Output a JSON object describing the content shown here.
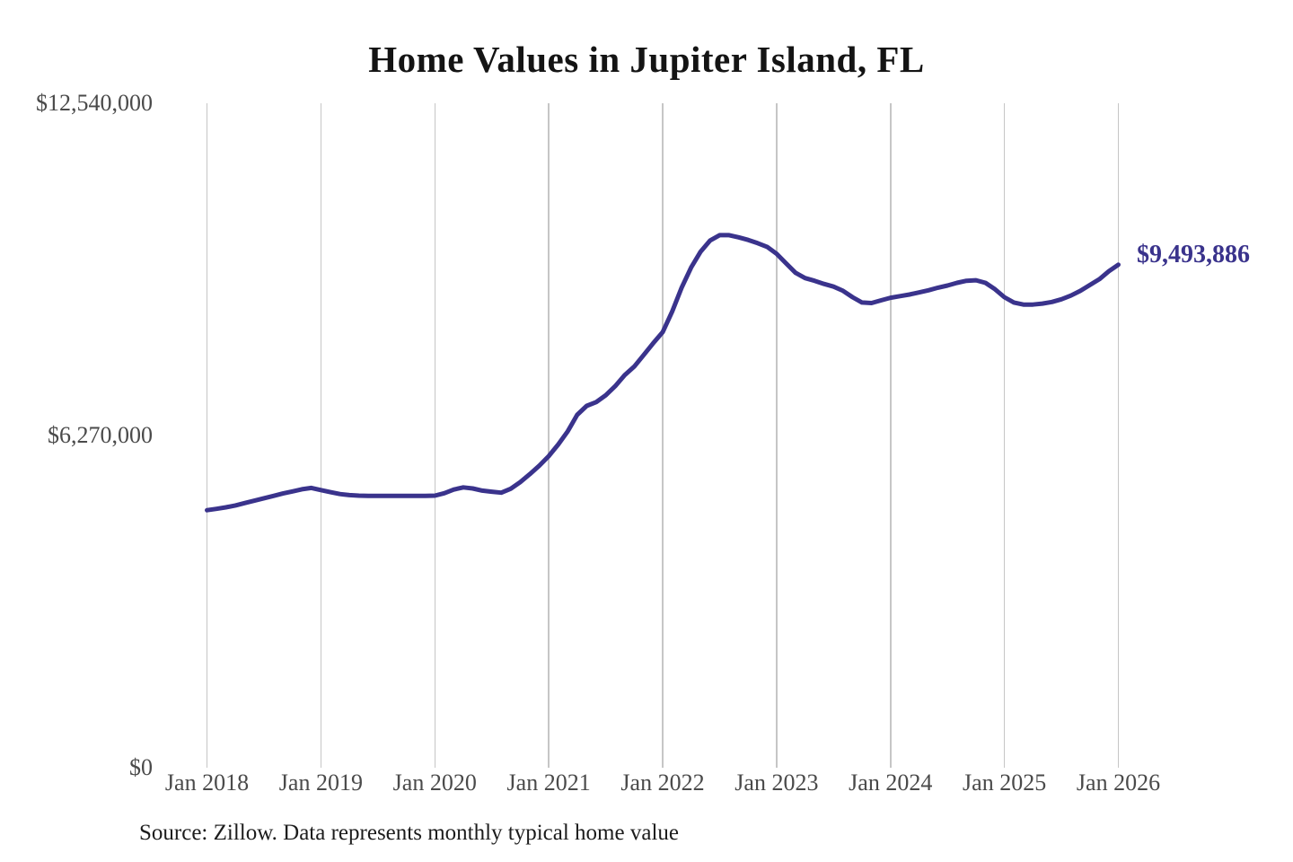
{
  "page": {
    "title": "Home Values in Jupiter Island, FL",
    "source_note": "Source: Zillow. Data represents monthly typical home value"
  },
  "colors": {
    "line": "#3a338c",
    "annotation": "#3a338c",
    "gridline": "#c6c6c6",
    "axis_label": "#4a4a4a",
    "title": "#141414",
    "background": "#ffffff"
  },
  "chart_data": {
    "type": "line",
    "title": "Home Values in Jupiter Island, FL",
    "xlabel": "",
    "ylabel": "",
    "ylim": [
      0,
      12540000
    ],
    "grid": "vertical-only",
    "legend": "none",
    "x_tick_labels": [
      "Jan 2018",
      "Jan 2019",
      "Jan 2020",
      "Jan 2021",
      "Jan 2022",
      "Jan 2023",
      "Jan 2024",
      "Jan 2025",
      "Jan 2026"
    ],
    "y_ticks": [
      {
        "label": "$0",
        "value": 0
      },
      {
        "label": "$6,270,000",
        "value": 6270000
      },
      {
        "label": "$12,540,000",
        "value": 12540000
      }
    ],
    "annotation": {
      "text": "$9,493,886",
      "value": 9493886
    },
    "series": [
      {
        "name": "typical_home_value",
        "interval": "monthly",
        "start": "Jan 2018",
        "end": "Jan 2026",
        "values": [
          4860000,
          4885000,
          4915000,
          4950000,
          4995000,
          5040000,
          5085000,
          5130000,
          5175000,
          5215000,
          5255000,
          5280000,
          5240000,
          5200000,
          5165000,
          5145000,
          5135000,
          5130000,
          5130000,
          5130000,
          5130000,
          5130000,
          5130000,
          5130000,
          5135000,
          5180000,
          5250000,
          5290000,
          5270000,
          5230000,
          5210000,
          5190000,
          5265000,
          5390000,
          5540000,
          5700000,
          5880000,
          6100000,
          6350000,
          6660000,
          6830000,
          6900000,
          7030000,
          7200000,
          7410000,
          7570000,
          7790000,
          8010000,
          8220000,
          8610000,
          9060000,
          9440000,
          9740000,
          9950000,
          10050000,
          10050000,
          10010000,
          9960000,
          9900000,
          9830000,
          9700000,
          9520000,
          9340000,
          9240000,
          9190000,
          9130000,
          9080000,
          9000000,
          8880000,
          8780000,
          8770000,
          8820000,
          8870000,
          8900000,
          8930000,
          8970000,
          9010000,
          9060000,
          9100000,
          9150000,
          9190000,
          9200000,
          9150000,
          9030000,
          8880000,
          8780000,
          8740000,
          8740000,
          8760000,
          8790000,
          8840000,
          8910000,
          9000000,
          9110000,
          9220000,
          9370000,
          9493886
        ]
      }
    ]
  }
}
